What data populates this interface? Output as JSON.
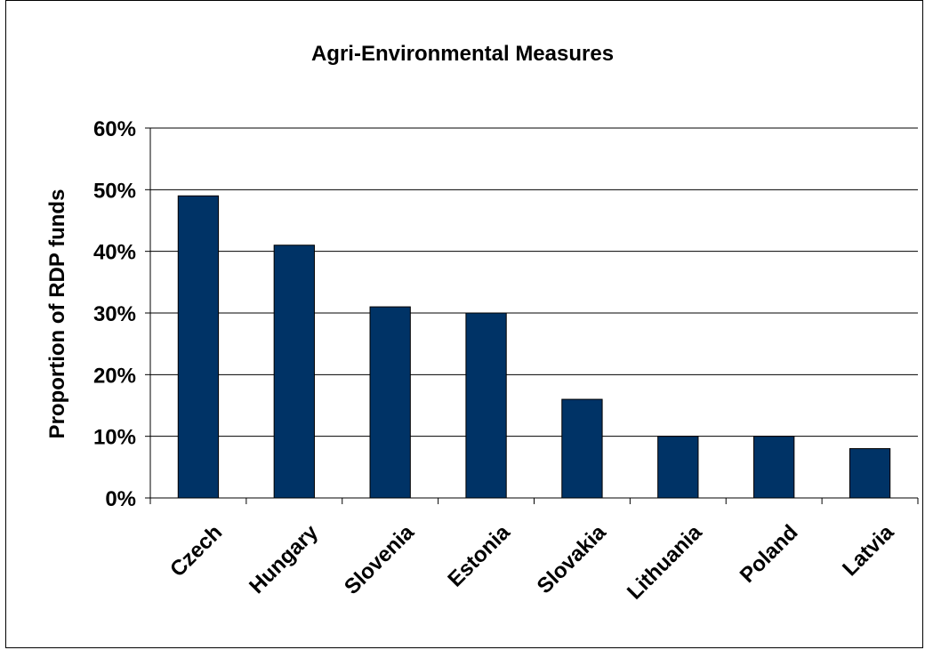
{
  "chart_data": {
    "type": "bar",
    "title": "Agri-Environmental Measures",
    "ylabel": "Proportion of RDP funds",
    "xlabel": "",
    "categories": [
      "Czech",
      "Hungary",
      "Slovenia",
      "Estonia",
      "Slovakia",
      "Lithuania",
      "Poland",
      "Latvia"
    ],
    "values": [
      49,
      41,
      31,
      30,
      16,
      10,
      10,
      8
    ],
    "ylim": [
      0,
      60
    ],
    "yticks": [
      0,
      10,
      20,
      30,
      40,
      50,
      60
    ],
    "ytick_labels": [
      "0%",
      "10%",
      "20%",
      "30%",
      "40%",
      "50%",
      "60%"
    ],
    "grid": true,
    "bar_color": "#003366"
  }
}
